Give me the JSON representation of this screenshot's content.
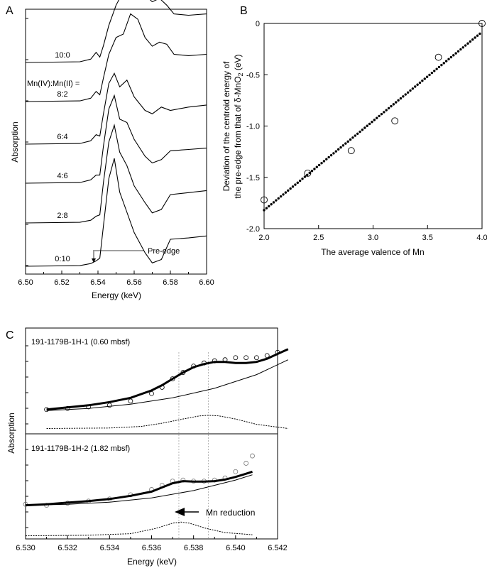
{
  "chart_data": [
    {
      "panel": "A",
      "type": "line",
      "xlabel": "Energy (keV)",
      "ylabel": "Absorption",
      "xlim": [
        6.5,
        6.6
      ],
      "xticks": [
        "6.50",
        "6.52",
        "6.54",
        "6.56",
        "6.58",
        "6.60"
      ],
      "ratio_header": "Mn(IV):Mn(II) =",
      "series": [
        {
          "name": "10:0",
          "offset": 5,
          "x": [
            6.5,
            6.53,
            6.536,
            6.539,
            6.541,
            6.543,
            6.546,
            6.55,
            6.554,
            6.558,
            6.562,
            6.566,
            6.57,
            6.574,
            6.578,
            6.582,
            6.59,
            6.6
          ],
          "y": [
            0,
            0.01,
            0.05,
            0.15,
            0.08,
            0.25,
            0.55,
            0.85,
            1.05,
            1.3,
            1.25,
            1.0,
            0.9,
            0.95,
            0.85,
            0.72,
            0.7,
            0.72
          ]
        },
        {
          "name": "8:2",
          "offset": 4,
          "x": [
            6.5,
            6.53,
            6.536,
            6.539,
            6.541,
            6.543,
            6.546,
            6.55,
            6.554,
            6.558,
            6.562,
            6.566,
            6.57,
            6.574,
            6.578,
            6.582,
            6.59,
            6.6
          ],
          "y": [
            0,
            0.01,
            0.05,
            0.15,
            0.1,
            0.35,
            0.7,
            0.95,
            1.0,
            1.3,
            1.22,
            0.95,
            0.82,
            0.88,
            0.85,
            0.7,
            0.68,
            0.7
          ]
        },
        {
          "name": "6:4",
          "offset": 3,
          "x": [
            6.5,
            6.53,
            6.536,
            6.539,
            6.541,
            6.543,
            6.546,
            6.549,
            6.552,
            6.556,
            6.56,
            6.566,
            6.57,
            6.575,
            6.58,
            6.59,
            6.6
          ],
          "y": [
            0,
            0.01,
            0.05,
            0.14,
            0.12,
            0.45,
            0.9,
            1.05,
            0.85,
            0.95,
            0.7,
            0.5,
            0.45,
            0.55,
            0.5,
            0.55,
            0.58
          ]
        },
        {
          "name": "4:6",
          "offset": 2,
          "x": [
            6.5,
            6.53,
            6.536,
            6.539,
            6.541,
            6.543,
            6.546,
            6.549,
            6.552,
            6.556,
            6.56,
            6.566,
            6.57,
            6.575,
            6.58,
            6.59,
            6.6
          ],
          "y": [
            0,
            0.01,
            0.05,
            0.12,
            0.12,
            0.55,
            1.1,
            1.3,
            0.95,
            0.9,
            0.65,
            0.4,
            0.3,
            0.35,
            0.48,
            0.5,
            0.52
          ]
        },
        {
          "name": "2:8",
          "offset": 1,
          "x": [
            6.5,
            6.53,
            6.536,
            6.539,
            6.541,
            6.543,
            6.546,
            6.549,
            6.552,
            6.556,
            6.56,
            6.566,
            6.57,
            6.575,
            6.58,
            6.59,
            6.6
          ],
          "y": [
            0,
            0.01,
            0.04,
            0.1,
            0.12,
            0.6,
            1.2,
            1.45,
            1.05,
            0.85,
            0.55,
            0.3,
            0.15,
            0.2,
            0.42,
            0.45,
            0.48
          ]
        },
        {
          "name": "0:10",
          "offset": 0,
          "x": [
            6.5,
            6.53,
            6.536,
            6.539,
            6.541,
            6.543,
            6.546,
            6.549,
            6.552,
            6.556,
            6.56,
            6.566,
            6.57,
            6.575,
            6.58,
            6.59,
            6.6
          ],
          "y": [
            0,
            0.01,
            0.04,
            0.08,
            0.12,
            0.6,
            1.3,
            1.6,
            1.1,
            0.8,
            0.5,
            0.2,
            0.05,
            0.1,
            0.4,
            0.42,
            0.45
          ]
        }
      ],
      "annotations": [
        {
          "text": "Pre-edge",
          "x": 6.5385
        }
      ]
    },
    {
      "panel": "B",
      "type": "scatter",
      "xlabel": "The average valence of Mn",
      "ylabel_line1": "Deviation of the centroid energy of",
      "ylabel_line2": "the pre-edge from that of δ-MnO",
      "ylabel_sub": "2",
      "ylabel_unit": " (eV)",
      "xlim": [
        2.0,
        4.0
      ],
      "ylim": [
        -2.0,
        0.0
      ],
      "xticks": [
        "2.0",
        "2.5",
        "3.0",
        "3.5",
        "4.0"
      ],
      "yticks": [
        "0",
        "-0.5",
        "-1.0",
        "-1.5",
        "-2.0"
      ],
      "points": {
        "x": [
          2.0,
          2.4,
          2.8,
          3.2,
          3.6,
          4.0
        ],
        "y": [
          -1.72,
          -1.46,
          -1.24,
          -0.95,
          -0.33,
          0.0
        ]
      },
      "fit_line": {
        "x": [
          2.0,
          3.98
        ],
        "y": [
          -1.82,
          -0.1
        ]
      }
    },
    {
      "panel": "C",
      "type": "line",
      "xlabel": "Energy (keV)",
      "ylabel": "Absorption",
      "xlim": [
        6.53,
        6.542
      ],
      "xticks": [
        "6.530",
        "6.532",
        "6.534",
        "6.536",
        "6.538",
        "6.540",
        "6.542"
      ],
      "vlines": [
        6.5373,
        6.5387
      ],
      "subpanels": [
        {
          "label": "191-1179B-1H-1 (0.60 mbsf)",
          "ylim": [
            0,
            1
          ],
          "data_x": [
            6.531,
            6.532,
            6.533,
            6.534,
            6.535,
            6.536,
            6.5365,
            6.537,
            6.5375,
            6.538,
            6.5385,
            6.539,
            6.5395,
            6.54,
            6.5405,
            6.541,
            6.5415,
            6.542
          ],
          "data_y": [
            0.23,
            0.24,
            0.255,
            0.27,
            0.31,
            0.38,
            0.44,
            0.52,
            0.58,
            0.64,
            0.67,
            0.69,
            0.7,
            0.72,
            0.72,
            0.72,
            0.74,
            0.77
          ],
          "fit_x": [
            6.531,
            6.532,
            6.533,
            6.534,
            6.535,
            6.536,
            6.5365,
            6.537,
            6.5375,
            6.538,
            6.5385,
            6.539,
            6.5395,
            6.54,
            6.5405,
            6.541,
            6.5415,
            6.5425
          ],
          "fit_y": [
            0.23,
            0.25,
            0.27,
            0.3,
            0.34,
            0.41,
            0.46,
            0.52,
            0.58,
            0.63,
            0.66,
            0.68,
            0.68,
            0.67,
            0.67,
            0.68,
            0.71,
            0.8
          ],
          "arctan_x": [
            6.531,
            6.533,
            6.535,
            6.537,
            6.539,
            6.541,
            6.5425
          ],
          "arctan_y": [
            0.22,
            0.24,
            0.28,
            0.34,
            0.43,
            0.56,
            0.7
          ],
          "gauss_x": [
            6.531,
            6.534,
            6.5355,
            6.5365,
            6.5375,
            6.5383,
            6.5387,
            6.5392,
            6.54,
            6.541,
            6.5425
          ],
          "gauss_y": [
            0.05,
            0.055,
            0.07,
            0.1,
            0.14,
            0.17,
            0.175,
            0.17,
            0.14,
            0.09,
            0.05
          ]
        },
        {
          "label": "191-1179B-1H-2 (1.82 mbsf)",
          "ylim": [
            0,
            1
          ],
          "data_x": [
            6.53,
            6.531,
            6.532,
            6.533,
            6.534,
            6.535,
            6.536,
            6.5365,
            6.537,
            6.5375,
            6.538,
            6.5385,
            6.539,
            6.5395,
            6.54,
            6.5405,
            6.5408
          ],
          "data_y": [
            0.33,
            0.32,
            0.34,
            0.36,
            0.38,
            0.42,
            0.47,
            0.51,
            0.55,
            0.56,
            0.55,
            0.55,
            0.56,
            0.58,
            0.64,
            0.72,
            0.79
          ],
          "fit_x": [
            6.53,
            6.531,
            6.532,
            6.533,
            6.534,
            6.535,
            6.536,
            6.5365,
            6.537,
            6.5375,
            6.538,
            6.5385,
            6.539,
            6.5395,
            6.54,
            6.5405,
            6.5408
          ],
          "fit_y": [
            0.32,
            0.33,
            0.345,
            0.36,
            0.38,
            0.41,
            0.45,
            0.49,
            0.53,
            0.55,
            0.545,
            0.545,
            0.55,
            0.565,
            0.59,
            0.62,
            0.64
          ],
          "arctan_x": [
            6.53,
            6.532,
            6.534,
            6.536,
            6.538,
            6.54,
            6.5408
          ],
          "arctan_y": [
            0.32,
            0.33,
            0.35,
            0.39,
            0.46,
            0.56,
            0.61
          ],
          "gauss_x": [
            6.53,
            6.533,
            6.535,
            6.5362,
            6.537,
            6.5374,
            6.5378,
            6.5386,
            6.5395,
            6.5408
          ],
          "gauss_y": [
            0.03,
            0.035,
            0.05,
            0.1,
            0.15,
            0.16,
            0.15,
            0.1,
            0.06,
            0.04
          ]
        }
      ],
      "annotations": [
        {
          "text": "Mn reduction"
        }
      ]
    }
  ]
}
